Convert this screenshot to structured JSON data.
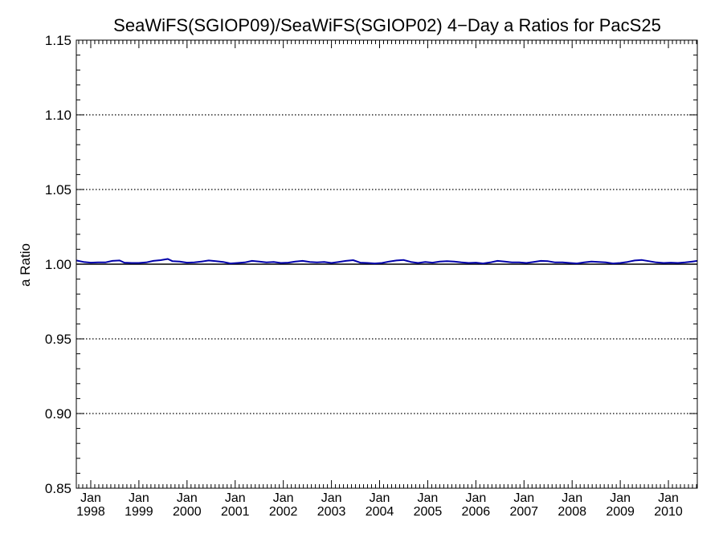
{
  "chart_data": {
    "type": "line",
    "title": "SeaWiFS(SGIOP09)/SeaWiFS(SGIOP02) 4−Day a Ratios for PacS25",
    "xlabel": "",
    "ylabel": "a Ratio",
    "xlim": [
      1997.7,
      2010.6
    ],
    "ylim": [
      0.85,
      1.15
    ],
    "y_ticks": [
      0.85,
      0.9,
      0.95,
      1.0,
      1.05,
      1.1,
      1.15
    ],
    "y_tick_labels": [
      "0.85",
      "0.90",
      "0.95",
      "1.00",
      "1.05",
      "1.10",
      "1.15"
    ],
    "y_gridlines": [
      0.9,
      0.95,
      1.05,
      1.1
    ],
    "reference_line": 1.0,
    "x_ticks": [
      {
        "x": 1998,
        "month": "Jan",
        "year": "1998"
      },
      {
        "x": 1999,
        "month": "Jan",
        "year": "1999"
      },
      {
        "x": 2000,
        "month": "Jan",
        "year": "2000"
      },
      {
        "x": 2001,
        "month": "Jan",
        "year": "2001"
      },
      {
        "x": 2002,
        "month": "Jan",
        "year": "2002"
      },
      {
        "x": 2003,
        "month": "Jan",
        "year": "2003"
      },
      {
        "x": 2004,
        "month": "Jan",
        "year": "2004"
      },
      {
        "x": 2005,
        "month": "Jan",
        "year": "2005"
      },
      {
        "x": 2006,
        "month": "Jan",
        "year": "2006"
      },
      {
        "x": 2007,
        "month": "Jan",
        "year": "2007"
      },
      {
        "x": 2008,
        "month": "Jan",
        "year": "2008"
      },
      {
        "x": 2009,
        "month": "Jan",
        "year": "2009"
      },
      {
        "x": 2010,
        "month": "Jan",
        "year": "2010"
      }
    ],
    "grid": "dotted horizontal",
    "series": [
      {
        "color": "#0000aa",
        "x": [
          1997.7,
          1997.85,
          1998.0,
          1998.15,
          1998.3,
          1998.45,
          1998.6,
          1998.7,
          1998.85,
          1999.0,
          1999.15,
          1999.3,
          1999.45,
          1999.6,
          1999.7,
          1999.85,
          2000.0,
          2000.15,
          2000.3,
          2000.45,
          2000.6,
          2000.75,
          2000.9,
          2001.05,
          2001.2,
          2001.35,
          2001.5,
          2001.65,
          2001.8,
          2001.95,
          2002.1,
          2002.25,
          2002.4,
          2002.55,
          2002.7,
          2002.85,
          2003.0,
          2003.15,
          2003.3,
          2003.45,
          2003.6,
          2003.75,
          2003.9,
          2004.05,
          2004.2,
          2004.35,
          2004.5,
          2004.65,
          2004.8,
          2004.95,
          2005.1,
          2005.25,
          2005.4,
          2005.55,
          2005.7,
          2005.85,
          2006.0,
          2006.15,
          2006.3,
          2006.45,
          2006.6,
          2006.75,
          2006.9,
          2007.05,
          2007.2,
          2007.35,
          2007.5,
          2007.65,
          2007.8,
          2007.95,
          2008.1,
          2008.25,
          2008.4,
          2008.55,
          2008.7,
          2008.85,
          2009.0,
          2009.15,
          2009.3,
          2009.45,
          2009.6,
          2009.75,
          2009.9,
          2010.05,
          2010.2,
          2010.35,
          2010.5,
          2010.6
        ],
        "values": [
          1.0025,
          1.0015,
          1.001,
          1.0012,
          1.0012,
          1.0022,
          1.0025,
          1.001,
          1.0008,
          1.0008,
          1.0012,
          1.0022,
          1.0027,
          1.0035,
          1.002,
          1.0018,
          1.001,
          1.0012,
          1.0018,
          1.0025,
          1.002,
          1.0015,
          1.0005,
          1.0008,
          1.0012,
          1.0022,
          1.0018,
          1.0012,
          1.0015,
          1.0008,
          1.001,
          1.0018,
          1.0022,
          1.0015,
          1.0012,
          1.0015,
          1.0008,
          1.0015,
          1.0022,
          1.0027,
          1.001,
          1.0008,
          1.0005,
          1.0008,
          1.0018,
          1.0025,
          1.0028,
          1.0015,
          1.0008,
          1.0015,
          1.001,
          1.0018,
          1.002,
          1.0018,
          1.0012,
          1.0008,
          1.001,
          1.0005,
          1.0012,
          1.0022,
          1.0018,
          1.0012,
          1.0012,
          1.0008,
          1.0015,
          1.0022,
          1.002,
          1.0012,
          1.0012,
          1.0008,
          1.0005,
          1.0012,
          1.0018,
          1.0015,
          1.0012,
          1.0005,
          1.0008,
          1.0015,
          1.0025,
          1.0028,
          1.002,
          1.0012,
          1.0008,
          1.001,
          1.0008,
          1.0012,
          1.0018,
          1.0022
        ]
      }
    ]
  }
}
